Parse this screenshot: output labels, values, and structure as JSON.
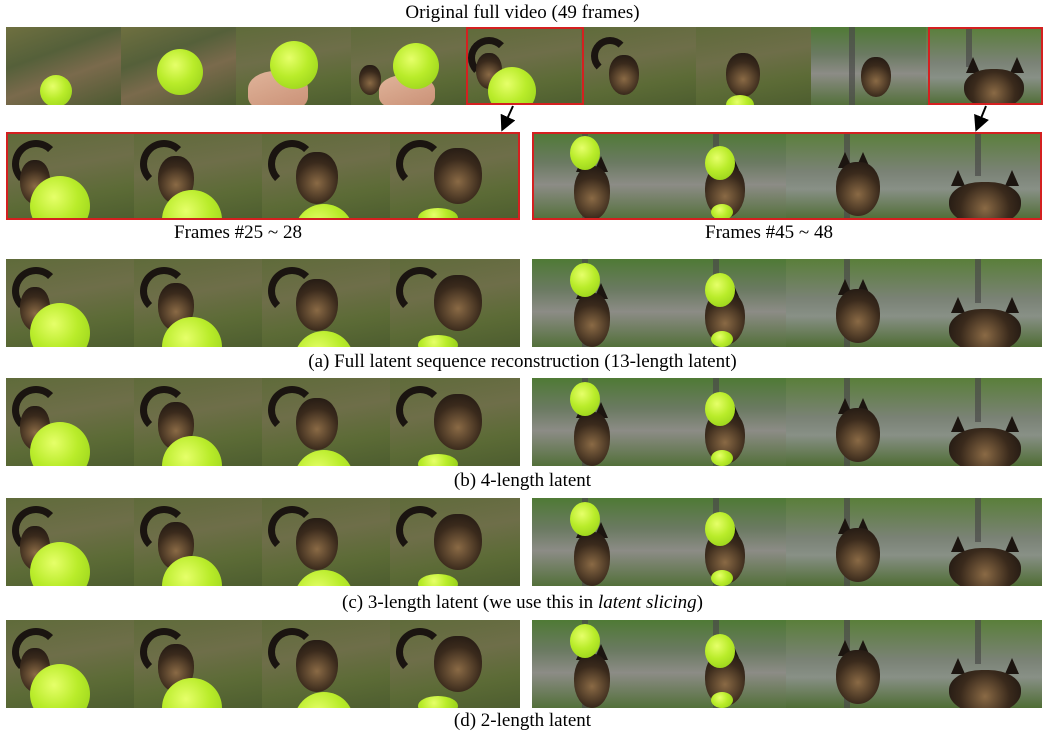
{
  "header": {
    "title": "Original full video (49 frames)"
  },
  "zoom_captions": {
    "left": "Frames #25 ~ 28",
    "right": "Frames #45 ~ 48"
  },
  "rows": [
    {
      "caption_prefix": "(a) Full latent sequence reconstruction (13-length latent)",
      "caption_italic": "",
      "caption_suffix": ""
    },
    {
      "caption_prefix": "(b) 4-length latent",
      "caption_italic": "",
      "caption_suffix": ""
    },
    {
      "caption_prefix": "(c) 3-length latent (we use this in ",
      "caption_italic": "latent slicing",
      "caption_suffix": ")"
    },
    {
      "caption_prefix": "(d) 2-length latent",
      "caption_italic": "",
      "caption_suffix": ""
    }
  ],
  "colors": {
    "highlight_border": "#d42020",
    "ball": "#b9ec2a",
    "background": "#ffffff"
  },
  "icons": [
    "arrow-down-left-icon",
    "arrow-down-left-icon"
  ]
}
